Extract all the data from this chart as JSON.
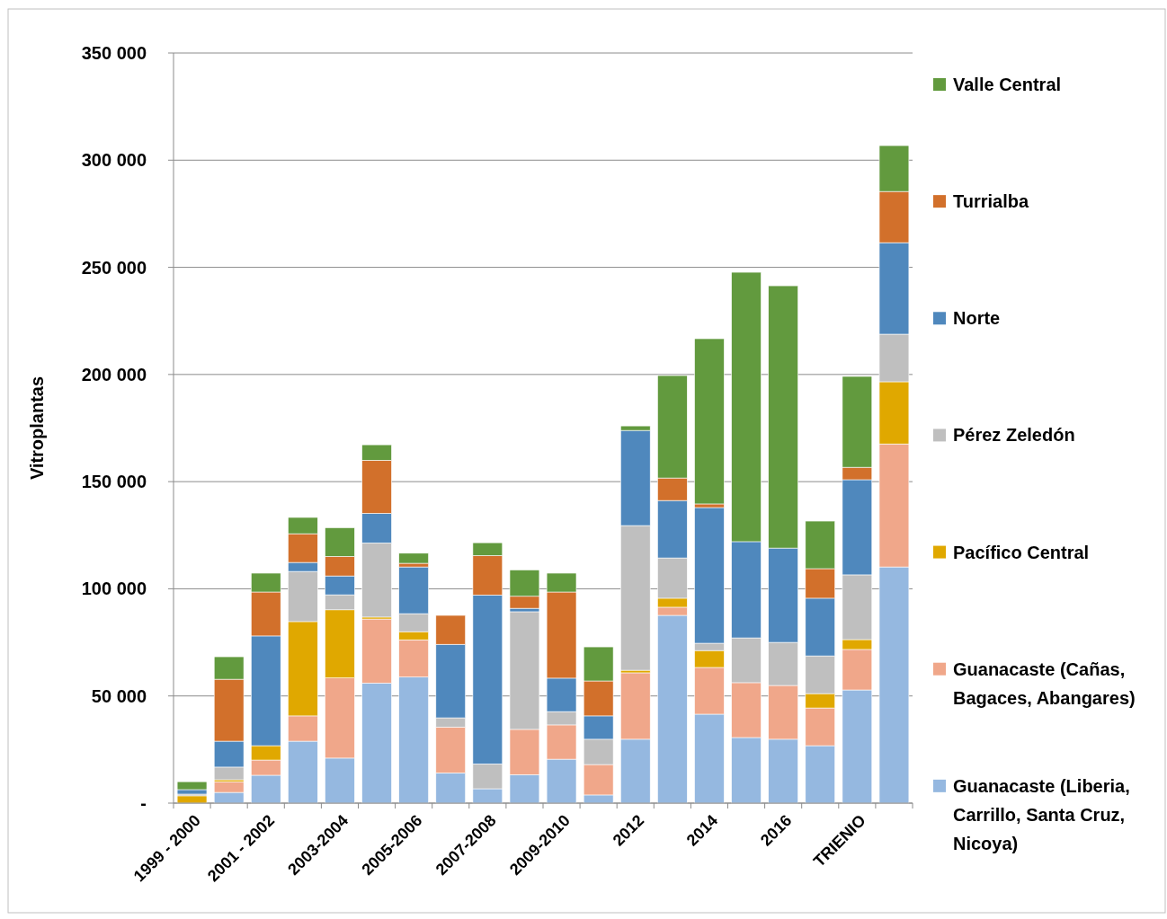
{
  "chart_data": {
    "type": "bar",
    "stacked": true,
    "ylabel": "Vitroplantas",
    "categories": [
      "1999 - 2000",
      null,
      "2001 - 2002",
      null,
      "2003-2004",
      null,
      "2005-2006",
      null,
      "2007-2008",
      null,
      "2009-2010",
      null,
      "2012",
      null,
      "2014",
      null,
      "2016",
      null,
      "TRIENIO",
      null
    ],
    "series": [
      {
        "name": "Guanacaste (Liberia, Carrillo, Santa Cruz, Nicoya)",
        "color": "#95b8e0",
        "values": [
          0,
          5000,
          13000,
          28900,
          21000,
          56000,
          58800,
          14100,
          6700,
          13300,
          20500,
          3800,
          29800,
          87600,
          41500,
          30600,
          29800,
          26800,
          52800,
          110200
        ]
      },
      {
        "name": "Guanacaste (Cañas, Bagaces, Abangares)",
        "color": "#f0a78a",
        "values": [
          0,
          5000,
          7100,
          11800,
          37400,
          29900,
          17400,
          21400,
          0,
          21100,
          16000,
          14200,
          31000,
          3800,
          21800,
          25600,
          25100,
          17600,
          18900,
          57400
        ]
      },
      {
        "name": "Pacífico Central",
        "color": "#e0a800",
        "values": [
          3400,
          900,
          6700,
          44000,
          31800,
          900,
          3800,
          0,
          0,
          0,
          0,
          0,
          1200,
          4200,
          7900,
          0,
          0,
          6700,
          4600,
          29000
        ]
      },
      {
        "name": "Pérez Zeledón",
        "color": "#bfbfbf",
        "values": [
          800,
          5900,
          0,
          23400,
          7000,
          34600,
          8400,
          4300,
          11600,
          54900,
          6200,
          11800,
          67500,
          18800,
          3400,
          20900,
          20100,
          17600,
          30200,
          22200
        ]
      },
      {
        "name": "Norte",
        "color": "#4f88bd",
        "values": [
          2100,
          12100,
          51200,
          4200,
          8800,
          13800,
          21800,
          34300,
          78800,
          1600,
          15600,
          10900,
          44400,
          26800,
          63300,
          44900,
          44000,
          26900,
          44400,
          42700
        ]
      },
      {
        "name": "Turrialba",
        "color": "#d2702b",
        "values": [
          0,
          28900,
          20500,
          13400,
          9100,
          24800,
          1700,
          13500,
          18400,
          5600,
          40200,
          16300,
          0,
          10500,
          1700,
          0,
          0,
          13800,
          5800,
          23900
        ]
      },
      {
        "name": "Valle Central",
        "color": "#629a3e",
        "values": [
          3700,
          10500,
          8800,
          7600,
          13400,
          7200,
          4700,
          0,
          6000,
          12300,
          8800,
          15900,
          2100,
          47800,
          77100,
          125700,
          122400,
          22200,
          42400,
          21400
        ]
      }
    ],
    "ylim": [
      0,
      350000
    ],
    "yticks": [
      {
        "value": 0,
        "label": "-"
      },
      {
        "value": 50000,
        "label": "50 000"
      },
      {
        "value": 100000,
        "label": "100 000"
      },
      {
        "value": 150000,
        "label": "150 000"
      },
      {
        "value": 200000,
        "label": "200 000"
      },
      {
        "value": 250000,
        "label": "250 000"
      },
      {
        "value": 300000,
        "label": "300 000"
      },
      {
        "value": 350000,
        "label": "350 000"
      }
    ],
    "grid": "y",
    "legend": "right"
  }
}
